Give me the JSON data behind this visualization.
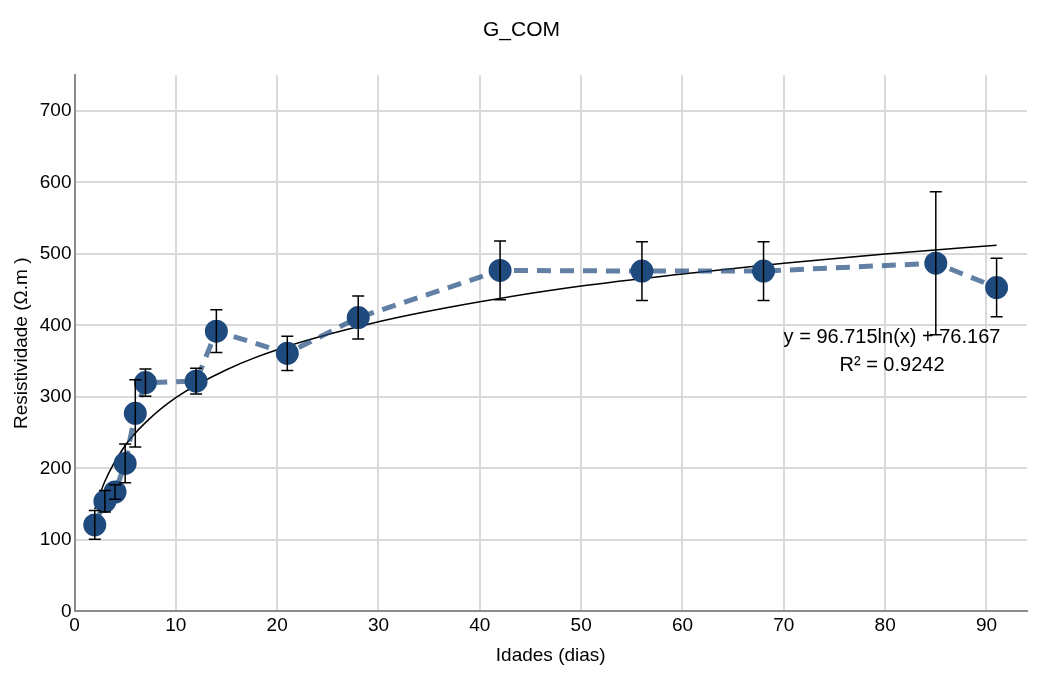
{
  "chart_data": {
    "type": "line",
    "title": "G_COM",
    "xlabel": "Idades (dias)",
    "ylabel": "Resistividade (Ω.m )",
    "xlim": [
      0,
      94
    ],
    "xticks": [
      0,
      10,
      20,
      30,
      40,
      50,
      60,
      70,
      80,
      90
    ],
    "ylim": [
      0,
      750
    ],
    "yticks": [
      0,
      100,
      200,
      300,
      400,
      500,
      600,
      700
    ],
    "grid": true,
    "legend": false,
    "marker": "circle",
    "line_style": "dashed",
    "annotations": [
      "y = 96.715ln(x) + 76.167",
      "R² = 0.9242"
    ],
    "series": [
      {
        "color": "#1f4a7e",
        "x": [
          2,
          3,
          4,
          5,
          6,
          7,
          12,
          14,
          21,
          28,
          42,
          56,
          68,
          85,
          91
        ],
        "values": [
          121,
          154,
          167,
          207,
          277,
          320,
          322,
          392,
          361,
          411,
          477,
          476,
          476,
          487,
          453
        ],
        "errors": [
          20,
          15,
          10,
          27,
          47,
          19,
          18,
          30,
          24,
          30,
          41,
          41,
          41,
          100,
          41
        ]
      },
      {
        "type": "line",
        "color": "#000000",
        "marker": "none",
        "line_style": "solid",
        "x": [
          2,
          3,
          5,
          7,
          10,
          15,
          20,
          30,
          40,
          50,
          60,
          70,
          80,
          91
        ],
        "values": [
          143,
          182,
          232,
          264,
          299,
          338,
          366,
          405,
          433,
          455,
          472,
          487,
          500,
          512
        ]
      }
    ]
  }
}
